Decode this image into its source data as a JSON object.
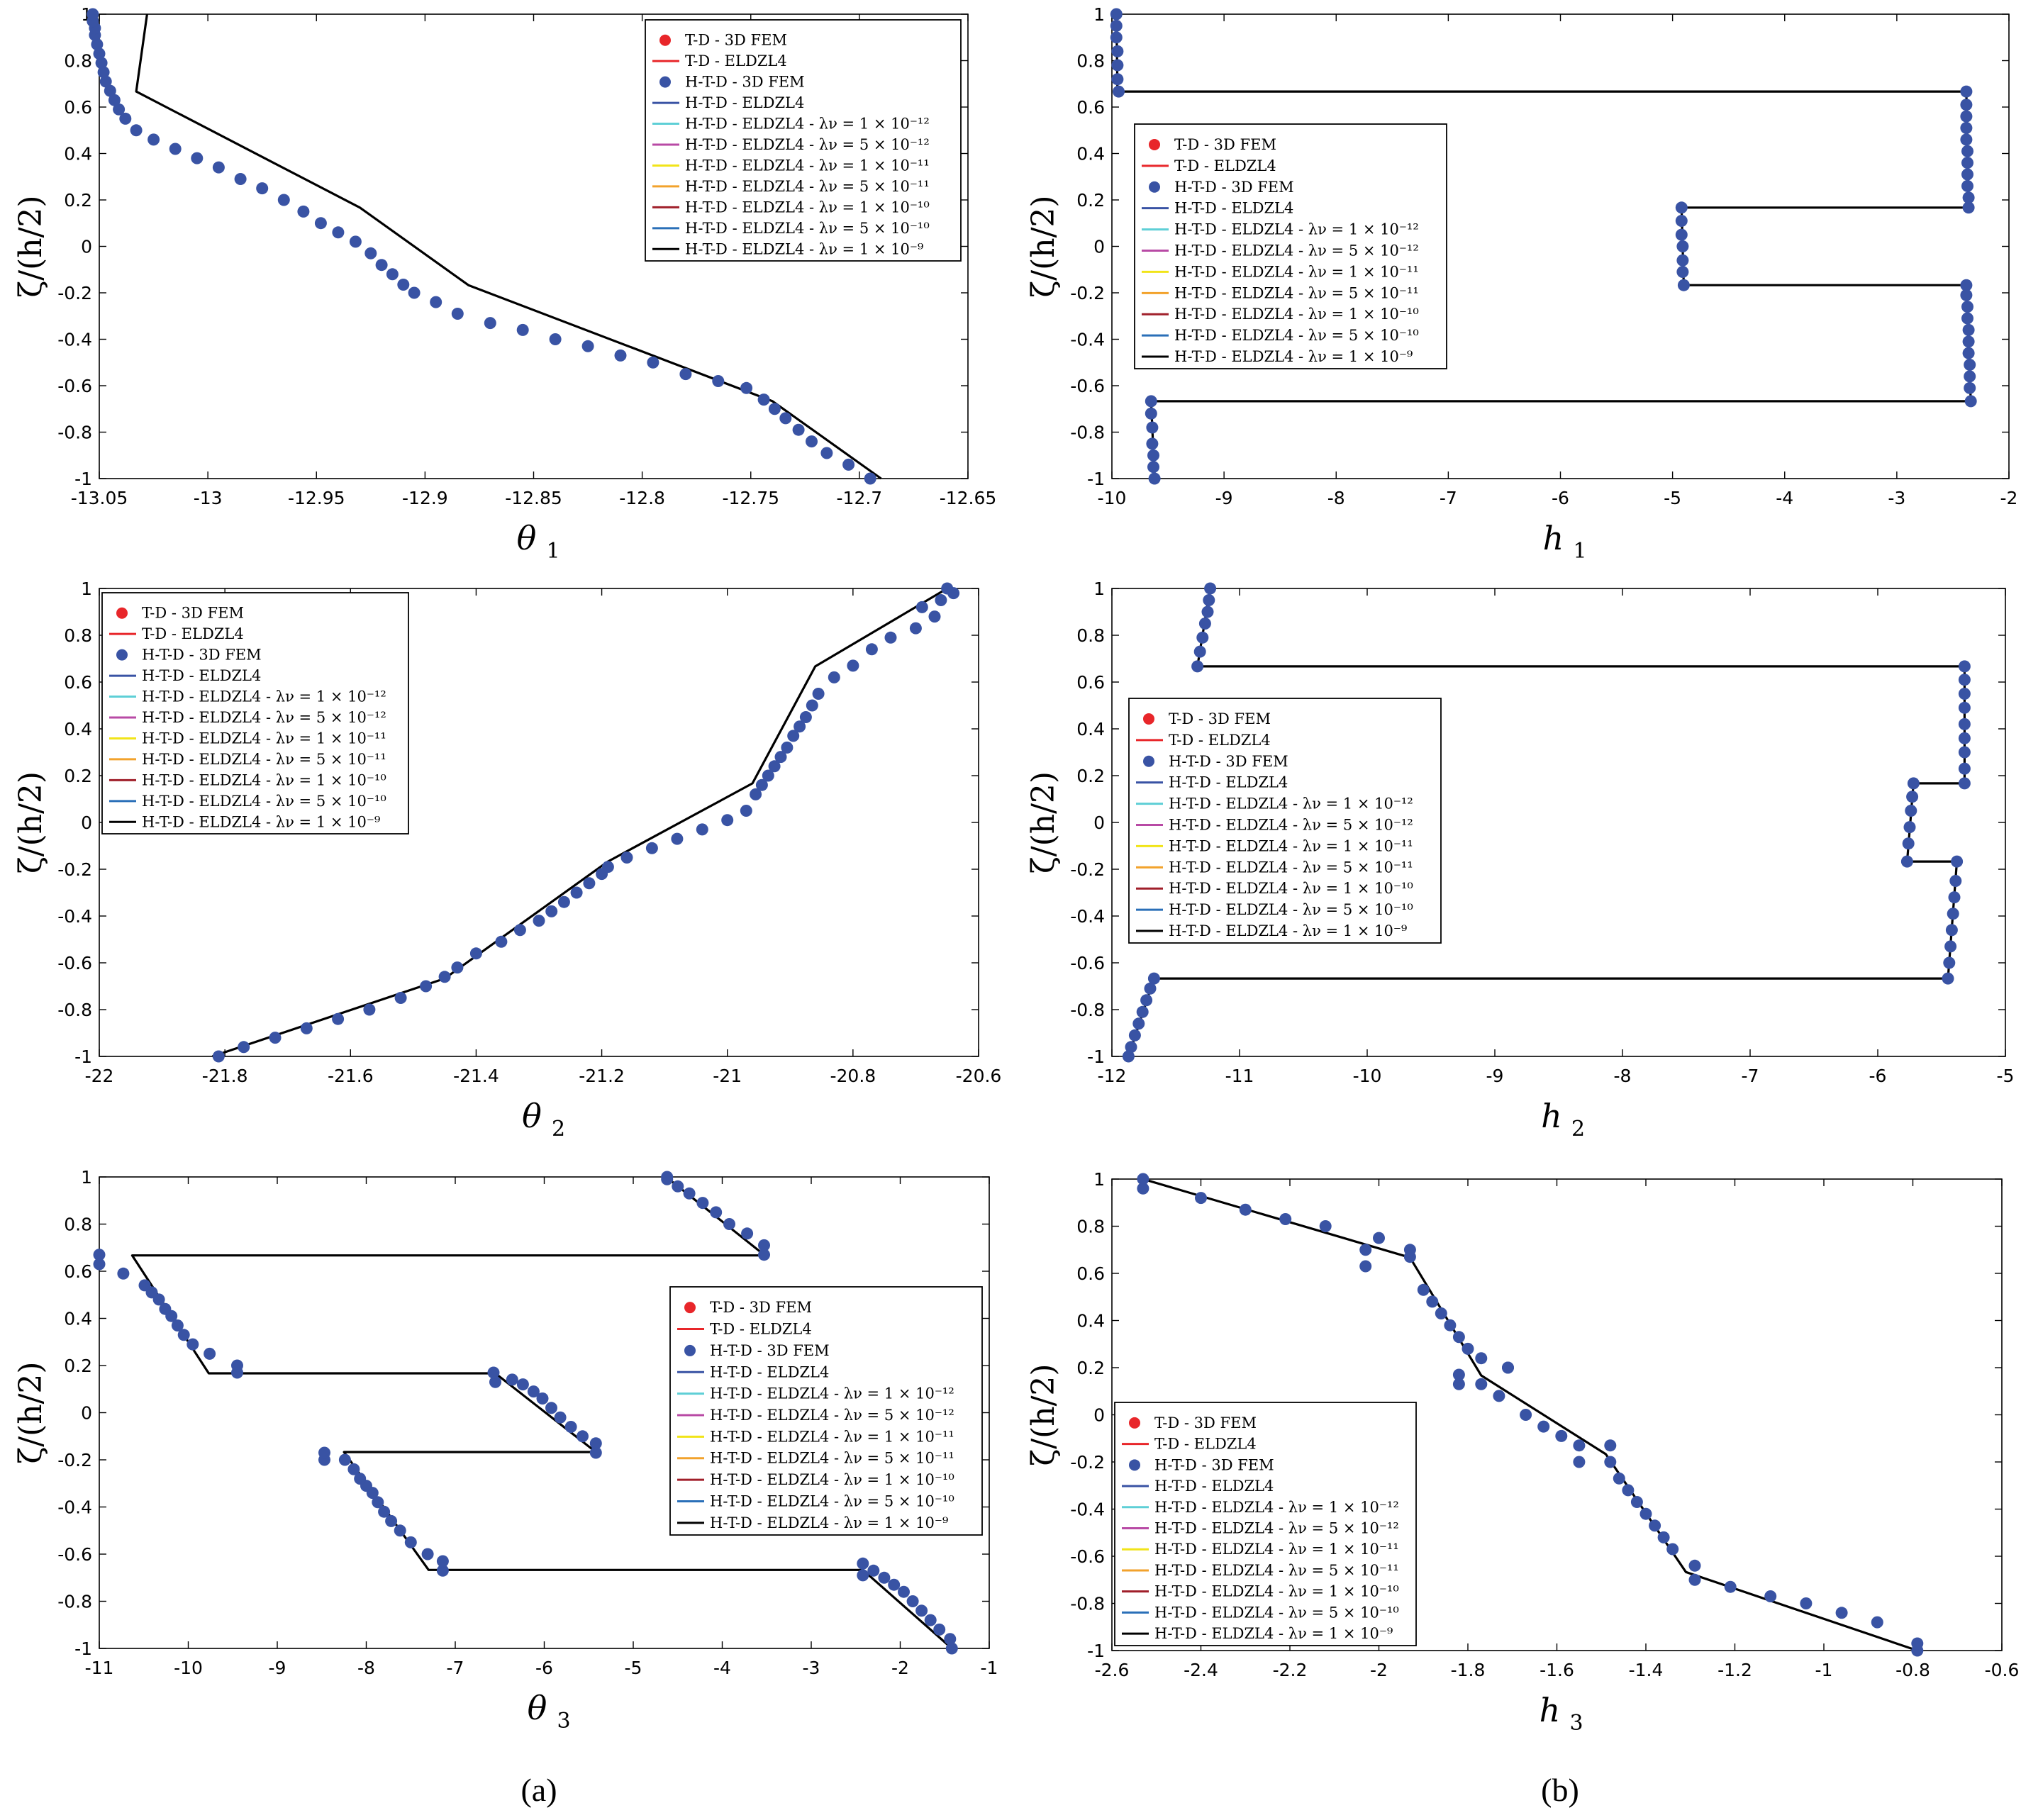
{
  "panel_labels": [
    "(a)",
    "(b)"
  ],
  "legend_entries": [
    {
      "label": "T-D - 3D FEM",
      "kind": "marker",
      "color": "#e8262a"
    },
    {
      "label": "T-D - ELDZL4",
      "kind": "line",
      "color": "#e8262a"
    },
    {
      "label": "H-T-D - 3D FEM",
      "kind": "marker",
      "color": "#3953a4"
    },
    {
      "label": "H-T-D - ELDZL4",
      "kind": "line",
      "color": "#3953a4"
    },
    {
      "label": "H-T-D - ELDZL4 - λν = 1 × 10⁻¹²",
      "kind": "line",
      "color": "#5ecfd6"
    },
    {
      "label": "H-T-D - ELDZL4 - λν = 5 × 10⁻¹²",
      "kind": "line",
      "color": "#b84aa5"
    },
    {
      "label": "H-T-D - ELDZL4 - λν = 1 × 10⁻¹¹",
      "kind": "line",
      "color": "#f1e419"
    },
    {
      "label": "H-T-D - ELDZL4 - λν = 5 × 10⁻¹¹",
      "kind": "line",
      "color": "#f2a22c"
    },
    {
      "label": "H-T-D - ELDZL4 - λν = 1 × 10⁻¹⁰",
      "kind": "line",
      "color": "#a01f2a"
    },
    {
      "label": "H-T-D - ELDZL4 - λν = 5 × 10⁻¹⁰",
      "kind": "line",
      "color": "#2a6fb8"
    },
    {
      "label": "H-T-D - ELDZL4 - λν = 1 × 10⁻⁹",
      "kind": "line",
      "color": "#000000"
    }
  ],
  "chart_data": [
    {
      "type": "line",
      "title": "",
      "xlabel": "θ",
      "xlabel_sub": "1",
      "ylabel": "ζ/(h/2)",
      "xlim": [
        -13.05,
        -12.65
      ],
      "ylim": [
        -1,
        1
      ],
      "xticks": [
        -13.05,
        -13,
        -12.95,
        -12.9,
        -12.85,
        -12.8,
        -12.75,
        -12.7,
        -12.65
      ],
      "yticks": [
        -1,
        -0.8,
        -0.6,
        -0.4,
        -0.2,
        0,
        0.2,
        0.4,
        0.6,
        0.8,
        1
      ],
      "legend_position": "top-right",
      "series": [
        {
          "name": "H-T-D - ELDZL4 - λν = 1 × 10⁻⁹",
          "kind": "line",
          "x": [
            -12.69,
            -12.74,
            -12.88,
            -12.93,
            -13.033,
            -13.028
          ],
          "y": [
            -1,
            -0.667,
            -0.167,
            0.167,
            0.667,
            1
          ]
        },
        {
          "name": "H-T-D - 3D FEM",
          "kind": "marker",
          "x": [
            -12.695,
            -12.705,
            -12.715,
            -12.722,
            -12.728,
            -12.734,
            -12.739,
            -12.744,
            -12.752,
            -12.765,
            -12.78,
            -12.795,
            -12.81,
            -12.825,
            -12.84,
            -12.855,
            -12.87,
            -12.885,
            -12.895,
            -12.905,
            -12.91,
            -12.915,
            -12.92,
            -12.925,
            -12.932,
            -12.94,
            -12.948,
            -12.956,
            -12.965,
            -12.975,
            -12.985,
            -12.995,
            -13.005,
            -13.015,
            -13.025,
            -13.033,
            -13.038,
            -13.041,
            -13.043,
            -13.045,
            -13.047,
            -13.048
          ],
          "y": [
            -1,
            -0.94,
            -0.89,
            -0.84,
            -0.79,
            -0.74,
            -0.7,
            -0.66,
            -0.61,
            -0.58,
            -0.55,
            -0.5,
            -0.47,
            -0.43,
            -0.4,
            -0.36,
            -0.33,
            -0.29,
            -0.24,
            -0.2,
            -0.165,
            -0.12,
            -0.08,
            -0.03,
            0.02,
            0.06,
            0.1,
            0.15,
            0.2,
            0.25,
            0.29,
            0.34,
            0.38,
            0.42,
            0.46,
            0.5,
            0.55,
            0.59,
            0.63,
            0.67,
            0.71,
            0.75
          ]
        },
        {
          "name": "H-T-D - 3D FEM (top)",
          "kind": "marker",
          "x": [
            -13.049,
            -13.05,
            -13.051,
            -13.052,
            -13.052,
            -13.053,
            -13.053
          ],
          "y": [
            0.79,
            0.83,
            0.87,
            0.91,
            0.94,
            0.97,
            1.0
          ]
        }
      ]
    },
    {
      "type": "line",
      "title": "",
      "xlabel": "h",
      "xlabel_sub": "1",
      "ylabel": "ζ/(h/2)",
      "xlim": [
        -10,
        -2
      ],
      "ylim": [
        -1,
        1
      ],
      "xticks": [
        -10,
        -9,
        -8,
        -7,
        -6,
        -5,
        -4,
        -3,
        -2
      ],
      "yticks": [
        -1,
        -0.8,
        -0.6,
        -0.4,
        -0.2,
        0,
        0.2,
        0.4,
        0.6,
        0.8,
        1
      ],
      "legend_position": "center-left",
      "series": [
        {
          "name": "H-T-D - ELDZL4 - λν = 1 × 10⁻⁹",
          "kind": "line",
          "x": [
            -9.62,
            -9.65,
            -9.65,
            -2.34,
            -2.38,
            -2.38,
            -4.9,
            -4.92,
            -4.92,
            -2.36,
            -2.38,
            -2.38,
            -9.95,
            -9.96
          ],
          "y": [
            -1,
            -0.667,
            -0.667,
            -0.667,
            -0.167,
            -0.167,
            -0.167,
            0.167,
            0.167,
            0.167,
            0.667,
            0.667,
            0.667,
            1
          ]
        },
        {
          "name": "H-T-D - 3D FEM",
          "kind": "marker",
          "x": [
            -9.62,
            -9.63,
            -9.63,
            -9.64,
            -9.64,
            -9.65,
            -9.65,
            -2.34,
            -2.35,
            -2.35,
            -2.35,
            -2.36,
            -2.36,
            -2.36,
            -2.37,
            -2.37,
            -2.38,
            -2.38,
            -4.9,
            -4.91,
            -4.91,
            -4.91,
            -4.92,
            -4.92,
            -4.92,
            -2.36,
            -2.36,
            -2.37,
            -2.37,
            -2.37,
            -2.37,
            -2.38,
            -2.38,
            -2.38,
            -2.38,
            -2.38,
            -9.94,
            -9.95,
            -9.95,
            -9.95,
            -9.96,
            -9.96,
            -9.96
          ],
          "y": [
            -1,
            -0.95,
            -0.9,
            -0.85,
            -0.78,
            -0.72,
            -0.667,
            -0.667,
            -0.61,
            -0.56,
            -0.51,
            -0.46,
            -0.41,
            -0.36,
            -0.31,
            -0.26,
            -0.21,
            -0.167,
            -0.167,
            -0.11,
            -0.06,
            0.0,
            0.05,
            0.11,
            0.167,
            0.167,
            0.21,
            0.26,
            0.31,
            0.36,
            0.41,
            0.46,
            0.51,
            0.56,
            0.61,
            0.667,
            0.667,
            0.72,
            0.78,
            0.84,
            0.9,
            0.95,
            1.0
          ]
        }
      ]
    },
    {
      "type": "line",
      "title": "",
      "xlabel": "θ",
      "xlabel_sub": "2",
      "ylabel": "ζ/(h/2)",
      "xlim": [
        -22,
        -20.6
      ],
      "ylim": [
        -1,
        1
      ],
      "xticks": [
        -22,
        -21.8,
        -21.6,
        -21.4,
        -21.2,
        -21,
        -20.8,
        -20.6
      ],
      "yticks": [
        -1,
        -0.8,
        -0.6,
        -0.4,
        -0.2,
        0,
        0.2,
        0.4,
        0.6,
        0.8,
        1
      ],
      "legend_position": "top-left",
      "series": [
        {
          "name": "H-T-D - ELDZL4 - λν = 1 × 10⁻⁹",
          "kind": "line",
          "x": [
            -21.82,
            -21.45,
            -21.19,
            -20.96,
            -20.86,
            -20.65
          ],
          "y": [
            -1,
            -0.667,
            -0.167,
            0.167,
            0.667,
            1
          ]
        },
        {
          "name": "H-T-D - 3D FEM",
          "kind": "marker",
          "x": [
            -21.81,
            -21.77,
            -21.72,
            -21.67,
            -21.62,
            -21.57,
            -21.52,
            -21.48,
            -21.45,
            -21.43,
            -21.4,
            -21.36,
            -21.33,
            -21.3,
            -21.28,
            -21.26,
            -21.24,
            -21.22,
            -21.2,
            -21.19,
            -21.16,
            -21.12,
            -21.08,
            -21.04,
            -21.0,
            -20.97,
            -20.955,
            -20.945,
            -20.935,
            -20.925,
            -20.915,
            -20.905,
            -20.895,
            -20.885,
            -20.875,
            -20.865,
            -20.855,
            -20.83,
            -20.8,
            -20.77,
            -20.74,
            -20.7,
            -20.67
          ],
          "y": [
            -1,
            -0.96,
            -0.92,
            -0.88,
            -0.84,
            -0.8,
            -0.75,
            -0.7,
            -0.66,
            -0.62,
            -0.56,
            -0.51,
            -0.46,
            -0.42,
            -0.38,
            -0.34,
            -0.3,
            -0.26,
            -0.22,
            -0.19,
            -0.15,
            -0.11,
            -0.07,
            -0.03,
            0.01,
            0.05,
            0.12,
            0.16,
            0.2,
            0.24,
            0.28,
            0.32,
            0.37,
            0.41,
            0.45,
            0.5,
            0.55,
            0.62,
            0.67,
            0.74,
            0.79,
            0.83,
            0.88
          ]
        },
        {
          "name": "H-T-D - 3D FEM (top)",
          "kind": "marker",
          "x": [
            -20.65,
            -20.64,
            -20.66,
            -20.69
          ],
          "y": [
            1.0,
            0.98,
            0.95,
            0.92
          ]
        }
      ]
    },
    {
      "type": "line",
      "title": "",
      "xlabel": "h",
      "xlabel_sub": "2",
      "ylabel": "ζ/(h/2)",
      "xlim": [
        -12,
        -5
      ],
      "ylim": [
        -1,
        1
      ],
      "xticks": [
        -12,
        -11,
        -10,
        -9,
        -8,
        -7,
        -6,
        -5
      ],
      "yticks": [
        -1,
        -0.8,
        -0.6,
        -0.4,
        -0.2,
        0,
        0.2,
        0.4,
        0.6,
        0.8,
        1
      ],
      "legend_position": "center-left",
      "series": [
        {
          "name": "H-T-D - ELDZL4 - λν = 1 × 10⁻⁹",
          "kind": "line",
          "x": [
            -11.87,
            -11.67,
            -11.67,
            -5.45,
            -5.38,
            -5.38,
            -5.77,
            -5.72,
            -5.72,
            -5.32,
            -5.32,
            -5.32,
            -11.33,
            -11.23
          ],
          "y": [
            -1,
            -0.667,
            -0.667,
            -0.667,
            -0.167,
            -0.167,
            -0.167,
            0.167,
            0.167,
            0.167,
            0.667,
            0.667,
            0.667,
            1
          ]
        },
        {
          "name": "H-T-D - 3D FEM",
          "kind": "marker",
          "x": [
            -11.87,
            -11.85,
            -11.82,
            -11.79,
            -11.76,
            -11.73,
            -11.7,
            -11.67,
            -5.45,
            -5.44,
            -5.43,
            -5.42,
            -5.41,
            -5.4,
            -5.39,
            -5.38,
            -5.77,
            -5.76,
            -5.75,
            -5.74,
            -5.73,
            -5.72,
            -5.32,
            -5.32,
            -5.32,
            -5.32,
            -5.32,
            -5.32,
            -5.32,
            -5.32,
            -5.32,
            -11.33,
            -11.31,
            -11.29,
            -11.27,
            -11.25,
            -11.24,
            -11.23
          ],
          "y": [
            -1,
            -0.96,
            -0.91,
            -0.86,
            -0.81,
            -0.76,
            -0.71,
            -0.667,
            -0.667,
            -0.6,
            -0.53,
            -0.46,
            -0.39,
            -0.32,
            -0.25,
            -0.167,
            -0.167,
            -0.09,
            -0.02,
            0.05,
            0.11,
            0.167,
            0.167,
            0.23,
            0.3,
            0.36,
            0.42,
            0.49,
            0.55,
            0.61,
            0.667,
            0.667,
            0.73,
            0.79,
            0.85,
            0.9,
            0.95,
            1.0
          ]
        }
      ]
    },
    {
      "type": "line",
      "title": "",
      "xlabel": "θ",
      "xlabel_sub": "3",
      "ylabel": "ζ/(h/2)",
      "xlim": [
        -11,
        -1
      ],
      "ylim": [
        -1,
        1
      ],
      "xticks": [
        -11,
        -10,
        -9,
        -8,
        -7,
        -6,
        -5,
        -4,
        -3,
        -2,
        -1
      ],
      "yticks": [
        -1,
        -0.8,
        -0.6,
        -0.4,
        -0.2,
        0,
        0.2,
        0.4,
        0.6,
        0.8,
        1
      ],
      "legend_position": "center-right",
      "series": [
        {
          "name": "H-T-D - ELDZL4 - λν = 1 × 10⁻⁹",
          "kind": "line",
          "x": [
            -1.42,
            -2.42,
            -7.3,
            -8.25,
            -5.42,
            -6.55,
            -9.77,
            -10.63,
            -3.52,
            -4.63
          ],
          "y": [
            -1,
            -0.667,
            -0.667,
            -0.167,
            -0.167,
            0.167,
            0.167,
            0.667,
            0.667,
            1
          ]
        },
        {
          "name": "H-T-D - 3D FEM",
          "kind": "marker",
          "x": [
            -1.42,
            -1.44,
            -1.56,
            -1.66,
            -1.76,
            -1.86,
            -1.96,
            -2.07,
            -2.18,
            -2.3,
            -2.42,
            -2.42,
            -7.14,
            -7.14,
            -7.31,
            -7.5,
            -7.62,
            -7.72,
            -7.8,
            -7.87,
            -7.93,
            -8.0,
            -8.07,
            -8.14,
            -8.24,
            -8.47,
            -8.47,
            -5.42,
            -5.42,
            -5.57,
            -5.7,
            -5.82,
            -5.92,
            -6.02,
            -6.12,
            -6.24,
            -6.36,
            -6.55,
            -6.57,
            -9.45,
            -9.45,
            -9.76,
            -9.95,
            -10.05,
            -10.12,
            -10.19,
            -10.26,
            -10.33,
            -10.41,
            -10.49,
            -10.73,
            -11.0,
            -11.0,
            -3.53,
            -3.53,
            -3.72,
            -3.92,
            -4.07,
            -4.22,
            -4.37,
            -4.5,
            -4.62,
            -4.62
          ],
          "y": [
            -1,
            -0.96,
            -0.92,
            -0.88,
            -0.84,
            -0.8,
            -0.76,
            -0.73,
            -0.7,
            -0.67,
            -0.69,
            -0.64,
            -0.67,
            -0.63,
            -0.6,
            -0.55,
            -0.5,
            -0.46,
            -0.42,
            -0.38,
            -0.34,
            -0.31,
            -0.28,
            -0.24,
            -0.2,
            -0.2,
            -0.17,
            -0.17,
            -0.13,
            -0.1,
            -0.06,
            -0.02,
            0.02,
            0.06,
            0.09,
            0.12,
            0.14,
            0.13,
            0.17,
            0.17,
            0.2,
            0.25,
            0.29,
            0.33,
            0.37,
            0.41,
            0.44,
            0.48,
            0.51,
            0.54,
            0.59,
            0.63,
            0.67,
            0.67,
            0.71,
            0.76,
            0.8,
            0.85,
            0.89,
            0.93,
            0.96,
            0.99,
            1.0
          ]
        }
      ]
    },
    {
      "type": "line",
      "title": "",
      "xlabel": "h",
      "xlabel_sub": "3",
      "ylabel": "ζ/(h/2)",
      "xlim": [
        -2.6,
        -0.6
      ],
      "ylim": [
        -1,
        1
      ],
      "xticks": [
        -2.6,
        -2.4,
        -2.2,
        -2,
        -1.8,
        -1.6,
        -1.4,
        -1.2,
        -1,
        -0.8,
        -0.6
      ],
      "yticks": [
        -1,
        -0.8,
        -0.6,
        -0.4,
        -0.2,
        0,
        0.2,
        0.4,
        0.6,
        0.8,
        1
      ],
      "legend_position": "bottom-left",
      "series": [
        {
          "name": "H-T-D - ELDZL4 - λν = 1 × 10⁻⁹",
          "kind": "line",
          "x": [
            -0.79,
            -1.31,
            -1.49,
            -1.77,
            -1.93,
            -2.53
          ],
          "y": [
            -1,
            -0.667,
            -0.167,
            0.167,
            0.667,
            1
          ]
        },
        {
          "name": "H-T-D - 3D FEM",
          "kind": "marker",
          "x": [
            -0.79,
            -0.79,
            -0.88,
            -0.96,
            -1.04,
            -1.12,
            -1.21,
            -1.29,
            -1.29,
            -1.34,
            -1.36,
            -1.38,
            -1.4,
            -1.42,
            -1.44,
            -1.46,
            -1.48,
            -1.48,
            -1.55,
            -1.55,
            -1.59,
            -1.63,
            -1.67,
            -1.73,
            -1.77,
            -1.82,
            -1.82,
            -1.71,
            -1.71,
            -1.77,
            -1.8,
            -1.82,
            -1.84,
            -1.86,
            -1.88,
            -1.9,
            -1.93,
            -1.93,
            -2.0,
            -2.03,
            -2.03,
            -2.12,
            -2.21,
            -2.3,
            -2.4,
            -2.53,
            -2.53
          ],
          "y": [
            -1,
            -0.97,
            -0.88,
            -0.84,
            -0.8,
            -0.77,
            -0.73,
            -0.7,
            -0.64,
            -0.57,
            -0.52,
            -0.47,
            -0.42,
            -0.37,
            -0.32,
            -0.27,
            -0.2,
            -0.13,
            -0.2,
            -0.13,
            -0.09,
            -0.05,
            0.0,
            0.08,
            0.13,
            0.13,
            0.17,
            0.2,
            0.2,
            0.24,
            0.28,
            0.33,
            0.38,
            0.43,
            0.48,
            0.53,
            0.67,
            0.7,
            0.75,
            0.7,
            0.63,
            0.8,
            0.83,
            0.87,
            0.92,
            0.96,
            1.0
          ]
        }
      ]
    }
  ]
}
